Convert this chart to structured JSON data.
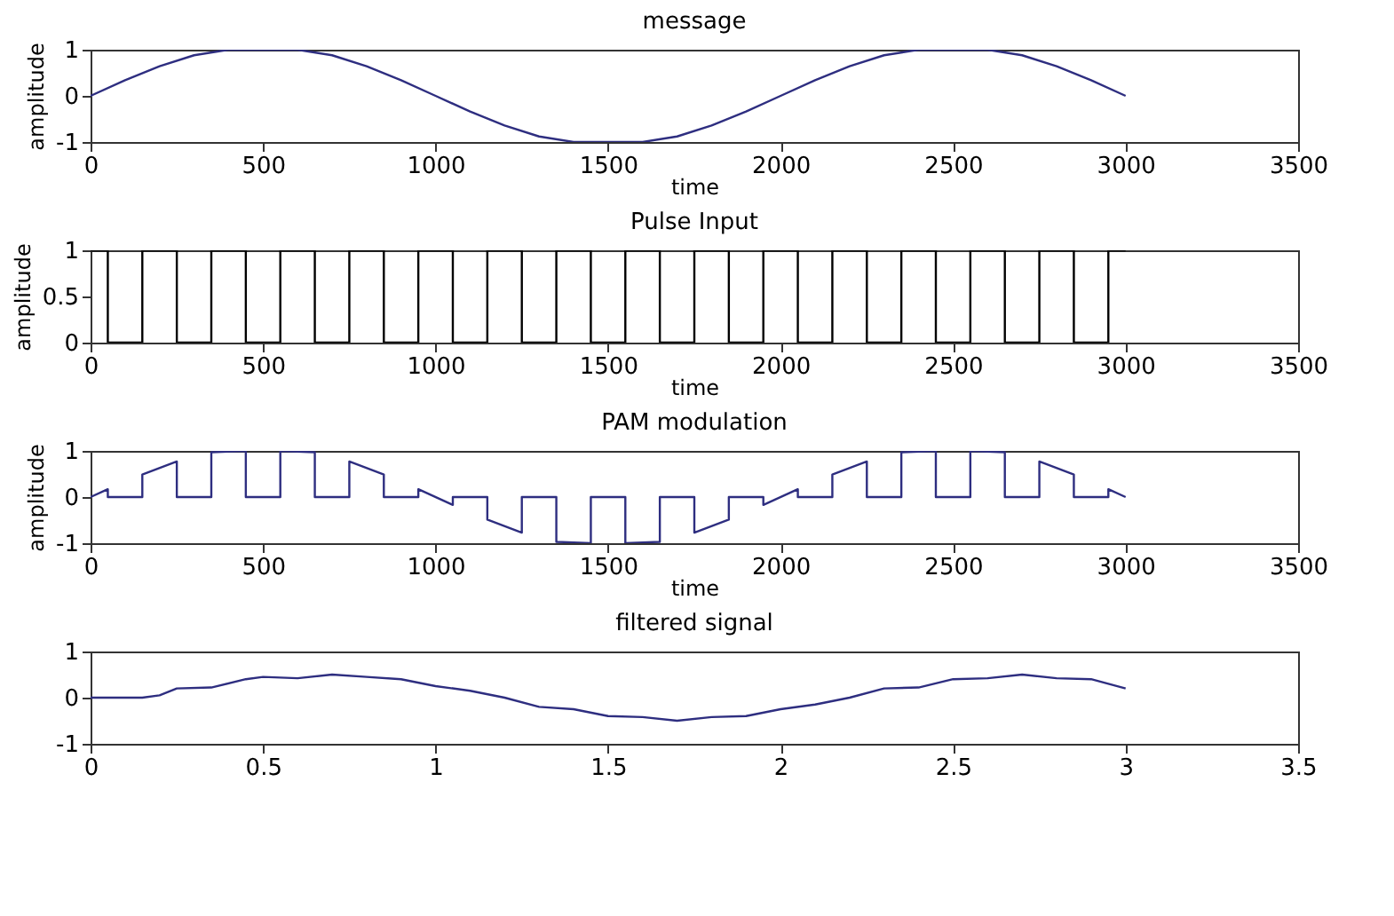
{
  "chart_data": [
    {
      "type": "line",
      "title": "message",
      "xlabel": "time",
      "ylabel": "amplitude",
      "xlim": [
        0,
        3500
      ],
      "xticks": [
        0,
        500,
        1000,
        1500,
        2000,
        2500,
        3000,
        3500
      ],
      "ylim": [
        -1,
        1
      ],
      "yticks": [
        -1,
        0,
        1
      ],
      "grid": false,
      "series": [
        {
          "color": "#2e2e80",
          "x": [
            0,
            100,
            200,
            300,
            400,
            500,
            600,
            700,
            800,
            900,
            1000,
            1100,
            1200,
            1300,
            1400,
            1500,
            1600,
            1700,
            1800,
            1900,
            2000,
            2100,
            2200,
            2300,
            2400,
            2500,
            2600,
            2700,
            2800,
            2900,
            3000
          ],
          "values": [
            0,
            0.34,
            0.64,
            0.88,
            1,
            1,
            1,
            0.88,
            0.64,
            0.34,
            0,
            -0.34,
            -0.64,
            -0.88,
            -1,
            -1,
            -1,
            -0.88,
            -0.64,
            -0.34,
            0,
            0.34,
            0.64,
            0.88,
            1,
            1,
            1,
            0.88,
            0.64,
            0.34,
            0
          ]
        }
      ]
    },
    {
      "type": "step",
      "title": "Pulse Input",
      "xlabel": "time",
      "ylabel": "amplitude",
      "xlim": [
        0,
        3500
      ],
      "xticks": [
        0,
        500,
        1000,
        1500,
        2000,
        2500,
        3000,
        3500
      ],
      "ylim": [
        0,
        1
      ],
      "yticks": [
        0,
        0.5,
        1
      ],
      "grid": false,
      "series": [
        {
          "color": "#000000",
          "x": [
            0,
            50,
            150,
            250,
            350,
            450,
            550,
            650,
            750,
            850,
            950,
            1050,
            1150,
            1250,
            1350,
            1450,
            1550,
            1650,
            1750,
            1850,
            1950,
            2050,
            2150,
            2250,
            2350,
            2450,
            2550,
            2650,
            2750,
            2850,
            2950,
            3000
          ],
          "values": [
            1,
            0,
            1,
            0,
            1,
            0,
            1,
            0,
            1,
            0,
            1,
            0,
            1,
            0,
            1,
            0,
            1,
            0,
            1,
            0,
            1,
            0,
            1,
            0,
            1,
            0,
            1,
            0,
            1,
            0,
            1,
            1
          ]
        }
      ]
    },
    {
      "type": "line",
      "title": "PAM modulation",
      "xlabel": "time",
      "ylabel": "amplitude",
      "xlim": [
        0,
        3500
      ],
      "xticks": [
        0,
        500,
        1000,
        1500,
        2000,
        2500,
        3000,
        3500
      ],
      "ylim": [
        -1,
        1
      ],
      "yticks": [
        -1,
        0,
        1
      ],
      "grid": false,
      "series": [
        {
          "color": "#2e2e80",
          "x": [
            0,
            50,
            50,
            150,
            150,
            250,
            250,
            350,
            350,
            450,
            450,
            550,
            550,
            650,
            650,
            750,
            750,
            850,
            850,
            950,
            950,
            1050,
            1050,
            1150,
            1150,
            1250,
            1250,
            1350,
            1350,
            1450,
            1450,
            1550,
            1550,
            1650,
            1650,
            1750,
            1750,
            1850,
            1850,
            1950,
            1950,
            2050,
            2050,
            2150,
            2150,
            2250,
            2250,
            2350,
            2350,
            2450,
            2450,
            2550,
            2550,
            2650,
            2650,
            2750,
            2750,
            2850,
            2850,
            2950,
            2950,
            3000
          ],
          "values": [
            0,
            0.17,
            0,
            0,
            0.49,
            0.77,
            0,
            0,
            0.97,
            1,
            0,
            0,
            1,
            0.97,
            0,
            0,
            0.77,
            0.49,
            0,
            0,
            0.17,
            -0.17,
            0,
            0,
            -0.49,
            -0.77,
            0,
            0,
            -0.97,
            -1,
            0,
            0,
            -1,
            -0.97,
            0,
            0,
            -0.77,
            -0.49,
            0,
            0,
            -0.17,
            0.17,
            0,
            0,
            0.49,
            0.77,
            0,
            0,
            0.97,
            1,
            0,
            0,
            1,
            0.97,
            0,
            0,
            0.77,
            0.49,
            0,
            0,
            0.17,
            0
          ]
        }
      ]
    },
    {
      "type": "line",
      "title": "filtered signal",
      "xlim": [
        0,
        3.5
      ],
      "xticks": [
        0,
        0.5,
        1,
        1.5,
        2,
        2.5,
        3,
        3.5
      ],
      "ylim": [
        -1,
        1
      ],
      "yticks": [
        -1,
        0,
        1
      ],
      "grid": false,
      "series": [
        {
          "color": "#2e2e80",
          "x": [
            0,
            0.15,
            0.2,
            0.25,
            0.35,
            0.45,
            0.5,
            0.6,
            0.7,
            0.8,
            0.9,
            1.0,
            1.1,
            1.2,
            1.3,
            1.4,
            1.5,
            1.6,
            1.7,
            1.8,
            1.9,
            2.0,
            2.1,
            2.2,
            2.3,
            2.4,
            2.5,
            2.6,
            2.7,
            2.8,
            2.9,
            3.0
          ],
          "values": [
            0,
            0,
            0.05,
            0.2,
            0.22,
            0.4,
            0.45,
            0.42,
            0.5,
            0.45,
            0.4,
            0.25,
            0.15,
            0,
            -0.2,
            -0.25,
            -0.4,
            -0.42,
            -0.5,
            -0.42,
            -0.4,
            -0.25,
            -0.15,
            0,
            0.2,
            0.22,
            0.4,
            0.42,
            0.5,
            0.42,
            0.4,
            0.2
          ]
        }
      ]
    }
  ]
}
